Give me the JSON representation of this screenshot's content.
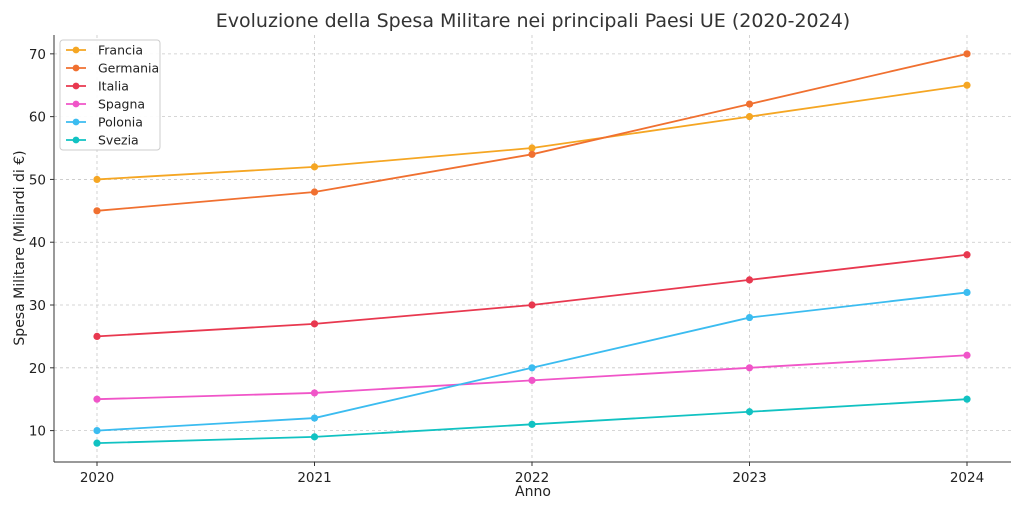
{
  "chart_data": {
    "type": "line",
    "title": "Evoluzione della Spesa Militare nei principali Paesi UE (2020-2024)",
    "xlabel": "Anno",
    "ylabel": "Spesa Militare (Miliardi di €)",
    "x": [
      2020,
      2021,
      2022,
      2023,
      2024
    ],
    "x_tick_labels": [
      "2020",
      "2021",
      "2022",
      "2023",
      "2024"
    ],
    "ylim": [
      5,
      73
    ],
    "y_ticks": [
      10,
      20,
      30,
      40,
      50,
      60,
      70
    ],
    "y_tick_labels": [
      "10",
      "20",
      "30",
      "40",
      "50",
      "60",
      "70"
    ],
    "grid": true,
    "legend_position": "top-left",
    "series": [
      {
        "name": "Francia",
        "color": "#f5a623",
        "values": [
          50,
          52,
          55,
          60,
          65
        ]
      },
      {
        "name": "Germania",
        "color": "#f07030",
        "values": [
          45,
          48,
          54,
          62,
          70
        ]
      },
      {
        "name": "Italia",
        "color": "#e8384f",
        "values": [
          25,
          27,
          30,
          34,
          38
        ]
      },
      {
        "name": "Spagna",
        "color": "#f055c8",
        "values": [
          15,
          16,
          18,
          20,
          22
        ]
      },
      {
        "name": "Polonia",
        "color": "#3bbcf0",
        "values": [
          10,
          12,
          20,
          28,
          32
        ]
      },
      {
        "name": "Svezia",
        "color": "#11c2c2",
        "values": [
          8,
          9,
          11,
          13,
          15
        ]
      }
    ]
  }
}
